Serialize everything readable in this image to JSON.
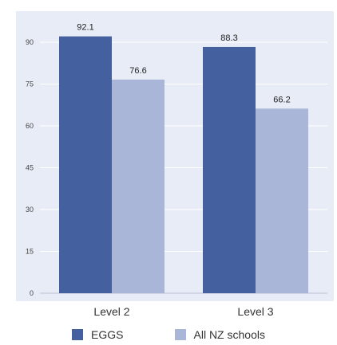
{
  "chart_data": {
    "type": "bar",
    "categories": [
      "Level 2",
      "Level 3"
    ],
    "series": [
      {
        "name": "EGGS",
        "values": [
          92.1,
          88.3
        ],
        "color": "#44609e"
      },
      {
        "name": "All NZ schools",
        "values": [
          76.6,
          66.2
        ],
        "color": "#a9b6d8"
      }
    ],
    "yticks": [
      0,
      15,
      30,
      45,
      60,
      75,
      90
    ],
    "ylim": [
      0,
      98
    ],
    "grid": true,
    "legend_position": "bottom",
    "plot_background": "#e8ecf6",
    "grid_color": "#ffffff"
  }
}
